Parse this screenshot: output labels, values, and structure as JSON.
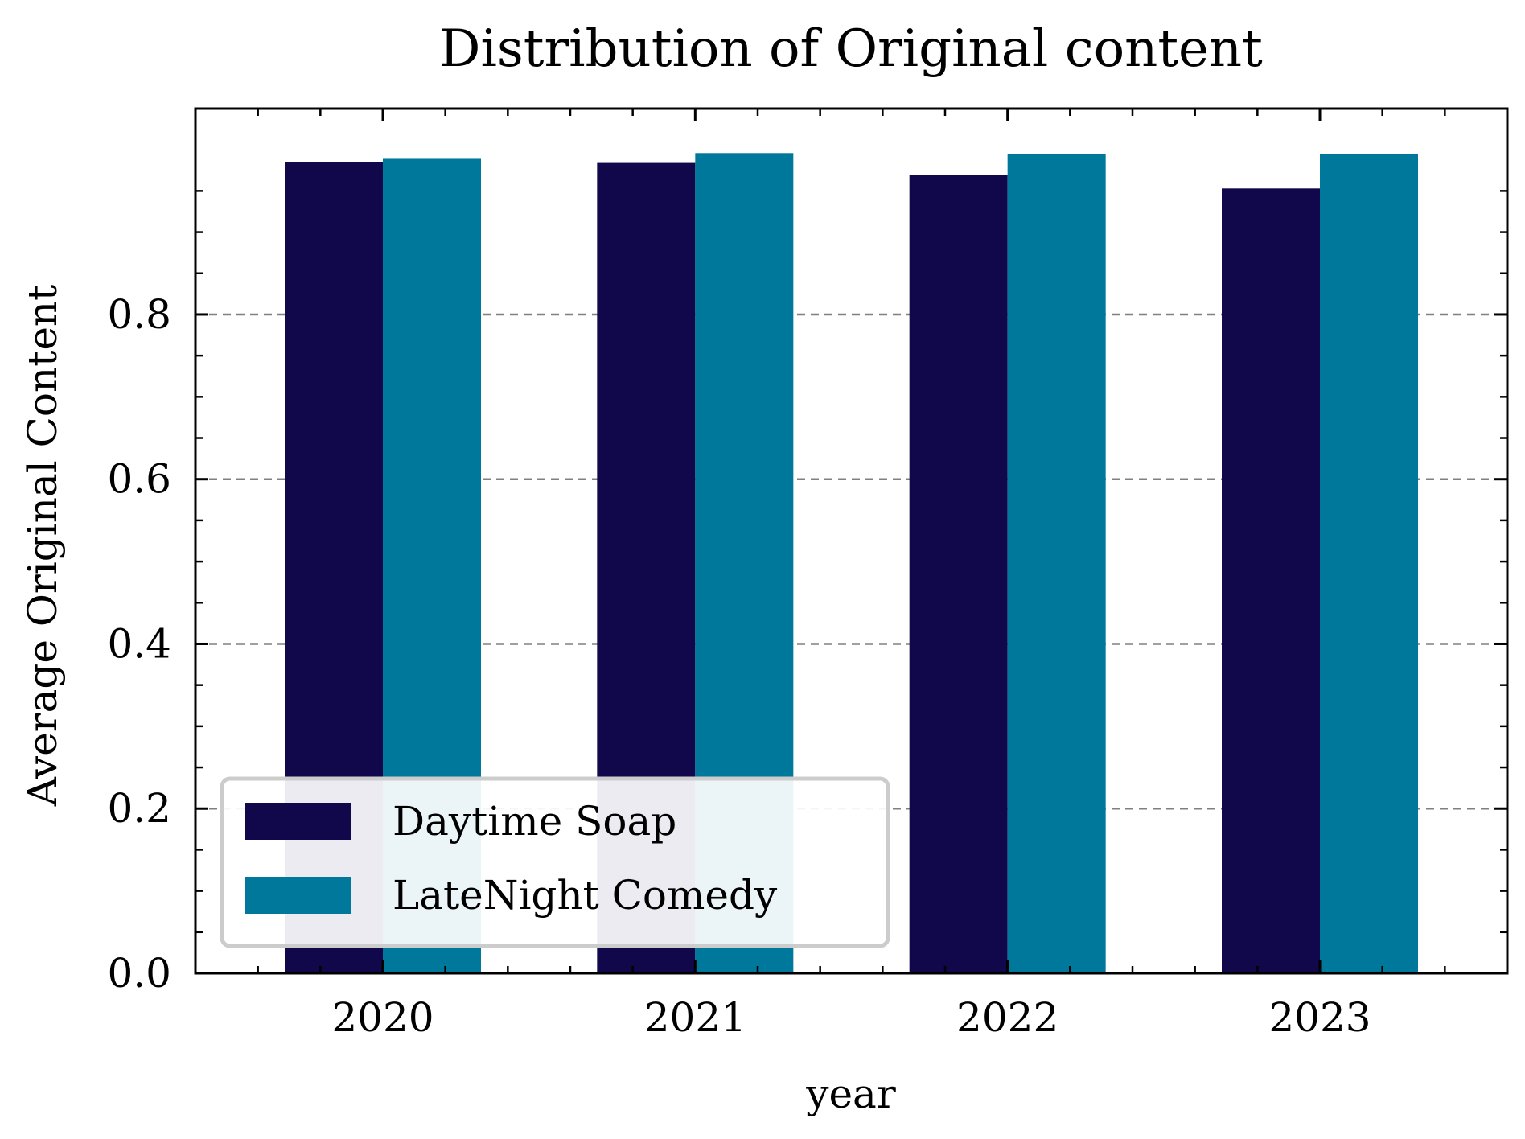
{
  "chart_data": {
    "type": "bar",
    "title": "Distribution of Original content",
    "xlabel": "year",
    "ylabel": "Average Original Content",
    "categories": [
      "2020",
      "2021",
      "2022",
      "2023"
    ],
    "series": [
      {
        "name": "Daytime Soap",
        "values": [
          0.985,
          0.984,
          0.969,
          0.953
        ],
        "color": "#10084a"
      },
      {
        "name": "LateNight Comedy",
        "values": [
          0.989,
          0.996,
          0.995,
          0.995
        ],
        "color": "#00789c"
      }
    ],
    "ylim": [
      0,
      1.05
    ],
    "yticks": [
      "0.0",
      "0.2",
      "0.4",
      "0.6",
      "0.8"
    ],
    "grid": {
      "axis": "y",
      "style": "dashed",
      "color": "#808080"
    },
    "legend": {
      "position": "lower-left"
    }
  }
}
